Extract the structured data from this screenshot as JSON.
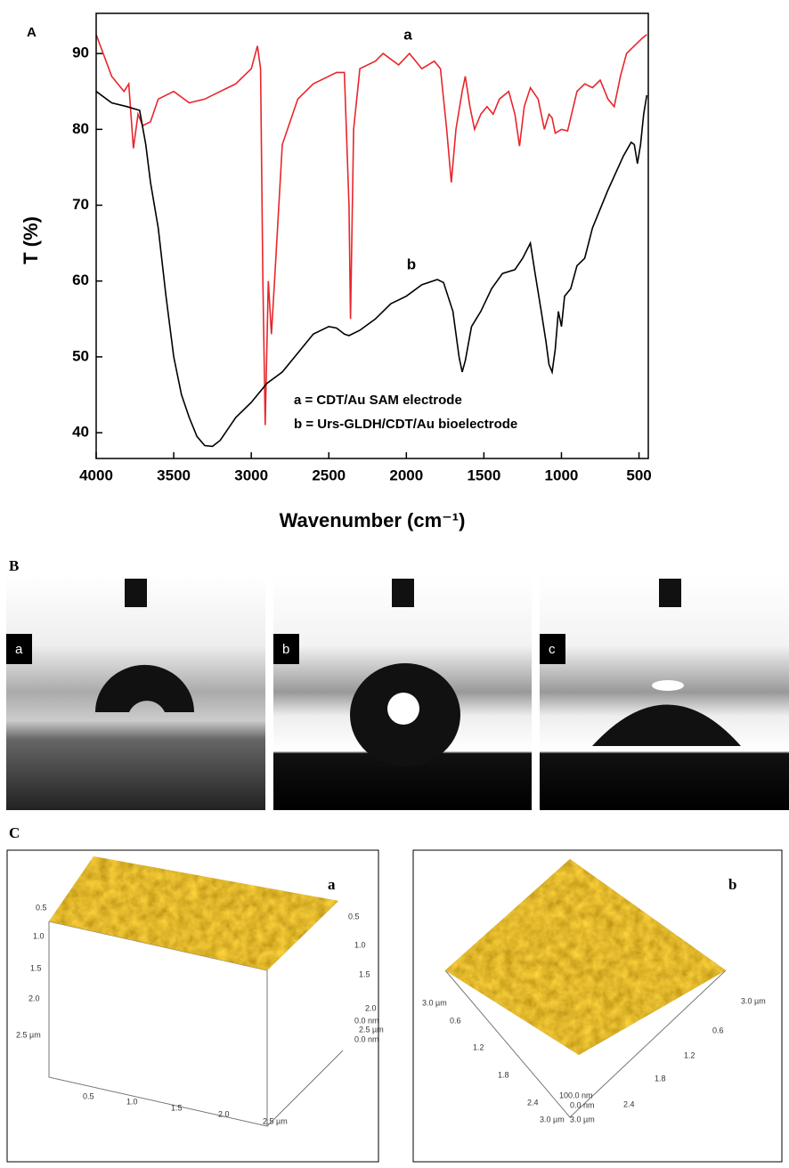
{
  "chart_data": {
    "type": "line",
    "panel_label": "A",
    "x_label": "Wavenumber (cm⁻¹)",
    "y_label": "T (%)",
    "xlim": [
      4000,
      440
    ],
    "ylim": [
      36.6,
      95.3
    ],
    "xticks": [
      4000,
      3500,
      3000,
      2500,
      2000,
      1500,
      1000,
      500
    ],
    "yticks": [
      40,
      50,
      60,
      70,
      80,
      90
    ],
    "annotations": [
      "a",
      "b",
      "a = CDT/Au SAM electrode",
      "b = Urs-GLDH/CDT/Au bioelectrode"
    ],
    "series": [
      {
        "name": "a",
        "color": "#e8262b",
        "x": [
          4000,
          3900,
          3820,
          3790,
          3760,
          3730,
          3700,
          3650,
          3600,
          3500,
          3400,
          3300,
          3200,
          3100,
          3000,
          2960,
          2940,
          2925,
          2910,
          2890,
          2870,
          2850,
          2800,
          2700,
          2600,
          2450,
          2400,
          2370,
          2360,
          2340,
          2300,
          2200,
          2150,
          2050,
          1980,
          1900,
          1820,
          1780,
          1740,
          1710,
          1680,
          1640,
          1620,
          1590,
          1560,
          1520,
          1480,
          1440,
          1400,
          1340,
          1300,
          1270,
          1240,
          1200,
          1150,
          1110,
          1080,
          1060,
          1040,
          1000,
          960,
          900,
          850,
          800,
          750,
          700,
          660,
          620,
          580,
          530,
          480,
          450
        ],
        "values": [
          92.5,
          87,
          85,
          86,
          77.5,
          82,
          80.5,
          81,
          84,
          85,
          83.5,
          84,
          85,
          86,
          88,
          91,
          88,
          60,
          41,
          60,
          53,
          60,
          78,
          84,
          86,
          87.5,
          87.5,
          70,
          55,
          80,
          88,
          89,
          90,
          88.5,
          90,
          88,
          89,
          88,
          80,
          73,
          80,
          85,
          87,
          83,
          80,
          82,
          83,
          82,
          84,
          85,
          82,
          77.8,
          83,
          85.5,
          84,
          80,
          82,
          81.5,
          79.5,
          80,
          79.8,
          85,
          86,
          85.5,
          86.5,
          84,
          83,
          87,
          90,
          91,
          92,
          92.5
        ]
      },
      {
        "name": "b",
        "color": "#000000",
        "x": [
          4000,
          3900,
          3800,
          3720,
          3680,
          3650,
          3600,
          3550,
          3500,
          3450,
          3400,
          3350,
          3300,
          3250,
          3200,
          3100,
          3000,
          2900,
          2800,
          2700,
          2600,
          2500,
          2450,
          2400,
          2370,
          2300,
          2200,
          2100,
          2000,
          1900,
          1800,
          1760,
          1700,
          1660,
          1640,
          1620,
          1580,
          1520,
          1450,
          1380,
          1300,
          1250,
          1200,
          1170,
          1130,
          1100,
          1080,
          1060,
          1040,
          1020,
          1000,
          980,
          940,
          900,
          850,
          800,
          700,
          600,
          550,
          530,
          510,
          490,
          470,
          450
        ],
        "values": [
          85,
          83.5,
          83,
          82.5,
          78,
          73,
          67,
          58,
          50,
          45,
          42,
          39.5,
          38.3,
          38.2,
          39,
          42,
          44,
          46.5,
          48,
          50.5,
          53,
          54,
          53.8,
          53,
          52.8,
          53.5,
          55,
          57,
          58,
          59.5,
          60.2,
          59.8,
          56,
          50,
          48,
          49.5,
          54,
          56,
          59,
          61,
          61.5,
          63,
          65,
          61,
          56,
          52,
          49,
          48,
          51,
          56,
          54,
          58,
          59,
          62,
          63,
          67,
          72,
          76.5,
          78.3,
          78,
          75.5,
          78,
          82,
          84.5
        ]
      }
    ]
  },
  "panel_b": {
    "label": "B",
    "images": [
      {
        "label": "a"
      },
      {
        "label": "b"
      },
      {
        "label": "c"
      }
    ]
  },
  "panel_c": {
    "label": "C",
    "images": [
      {
        "label": "a",
        "axis_texts": [
          "0.5",
          "1.0",
          "1.5",
          "2.0",
          "2.5 µm",
          "0.5",
          "1.0",
          "1.5",
          "2.0",
          "0.0 nm",
          "2.5 µm",
          "0.0 nm",
          "0.5",
          "1.0",
          "1.5",
          "2.0",
          "2.5 µm"
        ]
      },
      {
        "label": "b",
        "axis_texts": [
          "3.0 µm",
          "0.6",
          "1.2",
          "1.8",
          "2.4",
          "3.0 µm",
          "100.0 nm",
          "0.0 nm",
          "3.0 µm",
          "2.4",
          "1.8",
          "1.2",
          "0.6",
          "3.0 µm"
        ]
      }
    ]
  }
}
